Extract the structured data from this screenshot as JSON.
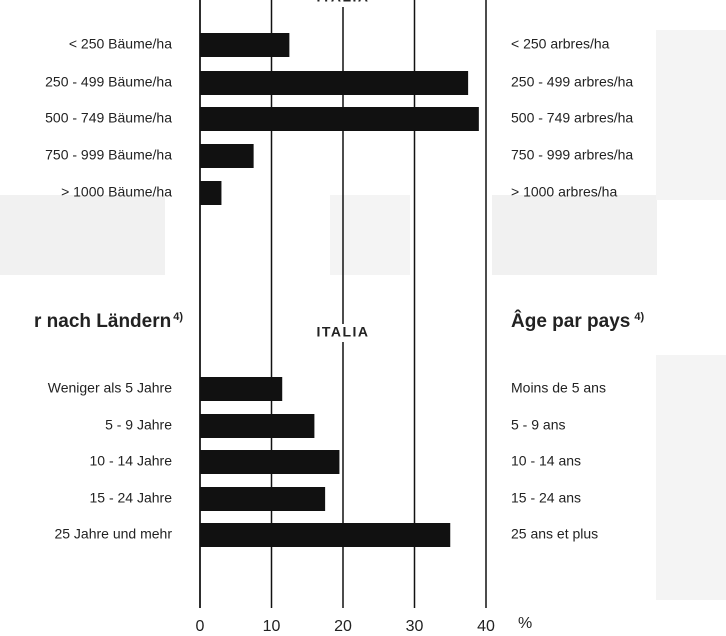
{
  "chart_data": [
    {
      "type": "bar",
      "orientation": "horizontal",
      "title": "ITALIA",
      "categories": [
        "< 250 Bäume/ha",
        "250 - 499 Bäume/ha",
        "500 - 749 Bäume/ha",
        "750 - 999 Bäume/ha",
        "> 1000 Bäume/ha"
      ],
      "categories_fr": [
        "< 250 arbres/ha",
        "250 - 499 arbres/ha",
        "500 - 749 arbres/ha",
        "750 - 999 arbres/ha",
        "> 1000 arbres/ha"
      ],
      "values": [
        12.5,
        37.5,
        39,
        7.5,
        3
      ],
      "color": "#111111",
      "xlim": [
        0,
        40
      ]
    },
    {
      "type": "bar",
      "orientation": "horizontal",
      "title": "ITALIA",
      "heading_de": "r nach Ländern",
      "heading_fr": "Âge par pays",
      "footnote": "4)",
      "categories": [
        "Weniger als 5 Jahre",
        "5 -   9 Jahre",
        "10 - 14 Jahre",
        "15 - 24 Jahre",
        "25 Jahre und mehr"
      ],
      "categories_fr": [
        "Moins de 5 ans",
        " 5 -   9 ans",
        "10 - 14 ans",
        "15 - 24 ans",
        "25 ans et plus"
      ],
      "values": [
        11.5,
        16,
        19.5,
        17.5,
        35
      ],
      "color": "#111111",
      "xlim": [
        0,
        40
      ],
      "xticks": [
        0,
        10,
        20,
        30,
        40
      ],
      "xlabel": "%",
      "grid": true
    }
  ]
}
